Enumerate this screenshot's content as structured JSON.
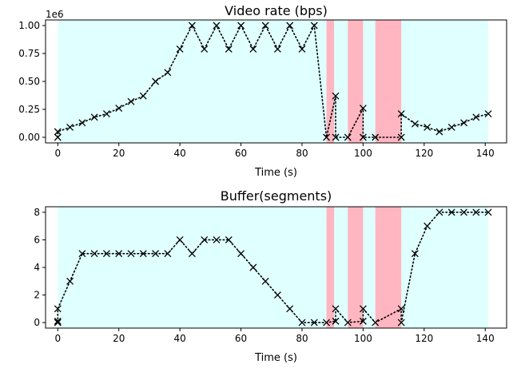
{
  "chart_data": [
    {
      "type": "line",
      "title": "Video rate (bps)",
      "xlabel": "Time (s)",
      "ylabel": "",
      "offset_label": "1e6",
      "xlim": [
        -4,
        147
      ],
      "ylim": [
        -0.05,
        1.05
      ],
      "xticks": [
        0,
        20,
        40,
        60,
        80,
        100,
        120,
        140
      ],
      "yticks": [
        0.0,
        0.25,
        0.5,
        0.75,
        1.0
      ],
      "ytick_labels": [
        "0.00",
        "0.25",
        "0.50",
        "0.75",
        "1.00"
      ],
      "line_color": "#000000",
      "line_style": "dotted",
      "marker": "x",
      "background_spans": [
        {
          "x0": 0,
          "x1": 141,
          "color": "#e0ffff"
        },
        {
          "x0": 88,
          "x1": 90.5,
          "color": "#ffb6c1"
        },
        {
          "x0": 95,
          "x1": 100,
          "color": "#ffb6c1"
        },
        {
          "x0": 104,
          "x1": 112.5,
          "color": "#ffb6c1"
        }
      ],
      "x": [
        0,
        0,
        4,
        8,
        12,
        16,
        20,
        24,
        28,
        32,
        36,
        40,
        44,
        48,
        52,
        56,
        60,
        64,
        68,
        72,
        76,
        80,
        84,
        88,
        91,
        91,
        95,
        100,
        100,
        104,
        112.5,
        112.5,
        117,
        121,
        125,
        129,
        133,
        137,
        141
      ],
      "y": [
        0,
        0.05,
        0.09,
        0.13,
        0.18,
        0.21,
        0.26,
        0.32,
        0.37,
        0.5,
        0.58,
        0.79,
        1.0,
        0.79,
        1.0,
        0.79,
        1.0,
        0.79,
        1.0,
        0.79,
        1.0,
        0.79,
        1.0,
        0,
        0.37,
        0,
        0,
        0.26,
        0,
        0,
        0,
        0.21,
        0.12,
        0.09,
        0.05,
        0.09,
        0.13,
        0.18,
        0.21
      ]
    },
    {
      "type": "line",
      "title": "Buffer(segments)",
      "xlabel": "Time (s)",
      "ylabel": "",
      "xlim": [
        -4,
        147
      ],
      "ylim": [
        -0.4,
        8.4
      ],
      "xticks": [
        0,
        20,
        40,
        60,
        80,
        100,
        120,
        140
      ],
      "yticks": [
        0,
        2,
        4,
        6,
        8
      ],
      "ytick_labels": [
        "0",
        "2",
        "4",
        "6",
        "8"
      ],
      "line_color": "#000000",
      "line_style": "dotted",
      "marker": "x",
      "background_spans": [
        {
          "x0": 0,
          "x1": 141,
          "color": "#e0ffff"
        },
        {
          "x0": 88,
          "x1": 90.5,
          "color": "#ffb6c1"
        },
        {
          "x0": 95,
          "x1": 100,
          "color": "#ffb6c1"
        },
        {
          "x0": 104,
          "x1": 112.5,
          "color": "#ffb6c1"
        }
      ],
      "x": [
        0,
        0,
        0,
        4,
        8,
        12,
        16,
        20,
        24,
        28,
        32,
        36,
        40,
        44,
        48,
        52,
        56,
        60,
        64,
        68,
        72,
        76,
        80,
        84,
        88,
        91,
        91,
        95,
        100,
        100,
        104,
        112.5,
        112.5,
        117,
        121,
        125,
        129,
        133,
        137,
        141
      ],
      "y": [
        0,
        0.1,
        1,
        3,
        5,
        5,
        5,
        5,
        5,
        5,
        5,
        5,
        6,
        5,
        6,
        6,
        6,
        5,
        4,
        3,
        2,
        1,
        0,
        0,
        0,
        0.1,
        1,
        0,
        0.1,
        1,
        0,
        1,
        0,
        5,
        7,
        8,
        8,
        8,
        8,
        8
      ]
    }
  ]
}
